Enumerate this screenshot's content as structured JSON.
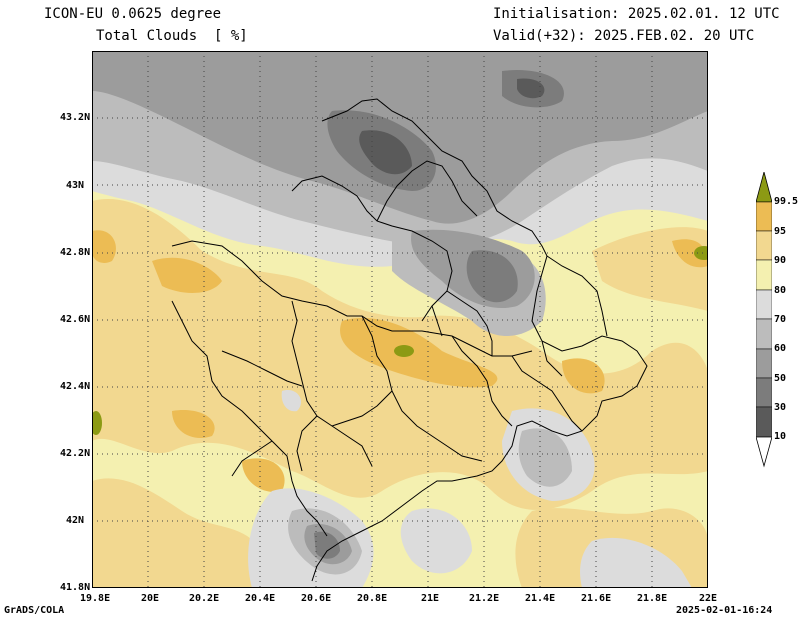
{
  "header": {
    "model": "ICON-EU 0.0625 degree",
    "field": "Total Clouds  [ %]",
    "init": "Initialisation: 2025.02.01. 12 UTC",
    "valid": "Valid(+32): 2025.FEB.02. 20 UTC"
  },
  "axes": {
    "x_ticks": [
      "19.8E",
      "20E",
      "20.2E",
      "20.4E",
      "20.6E",
      "20.8E",
      "21E",
      "21.2E",
      "21.4E",
      "21.6E",
      "21.8E",
      "22E"
    ],
    "y_ticks": [
      "43.2N",
      "43N",
      "42.8N",
      "42.6N",
      "42.4N",
      "42.2N",
      "42N",
      "41.8N"
    ]
  },
  "colorbar": {
    "levels": [
      "99.5",
      "95",
      "90",
      "80",
      "70",
      "60",
      "50",
      "30",
      "10"
    ],
    "colors": {
      "lt10": "#ffffff",
      "c10_30": "#5a5a5a",
      "c30_50": "#7c7c7c",
      "c50_60": "#9c9c9c",
      "c60_70": "#bcbcbc",
      "c70_80": "#dcdcdc",
      "c80_90": "#f4f0b0",
      "c90_95": "#f2d890",
      "c95_99_5": "#ecbc54",
      "gt99_5": "#8c9a14"
    }
  },
  "footer": {
    "left": "GrADS/COLA",
    "right": "2025-02-01-16:24"
  }
}
